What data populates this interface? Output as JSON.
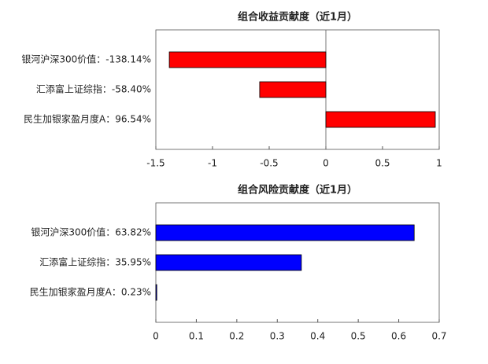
{
  "chart_data": [
    {
      "type": "barh",
      "title": "组合收益贡献度（近1月）",
      "categories": [
        "银河沪深300价值：-138.14%",
        "汇添富上证综指：-58.40%",
        "民生加银家盈月度A：96.54%"
      ],
      "values": [
        -1.3814,
        -0.584,
        0.9654
      ],
      "color": "#ff0000",
      "xlim": [
        -1.5,
        1
      ],
      "xticks": [
        -1.5,
        -1,
        -0.5,
        0,
        0.5,
        1
      ]
    },
    {
      "type": "barh",
      "title": "组合风险贡献度（近1月）",
      "categories": [
        "银河沪深300价值：63.82%",
        "汇添富上证综指：35.95%",
        "民生加银家盈月度A：0.23%"
      ],
      "values": [
        0.6382,
        0.3595,
        0.0023
      ],
      "color": "#0000ff",
      "xlim": [
        0,
        0.7
      ],
      "xticks": [
        0,
        0.1,
        0.2,
        0.3,
        0.4,
        0.5,
        0.6,
        0.7
      ]
    }
  ]
}
